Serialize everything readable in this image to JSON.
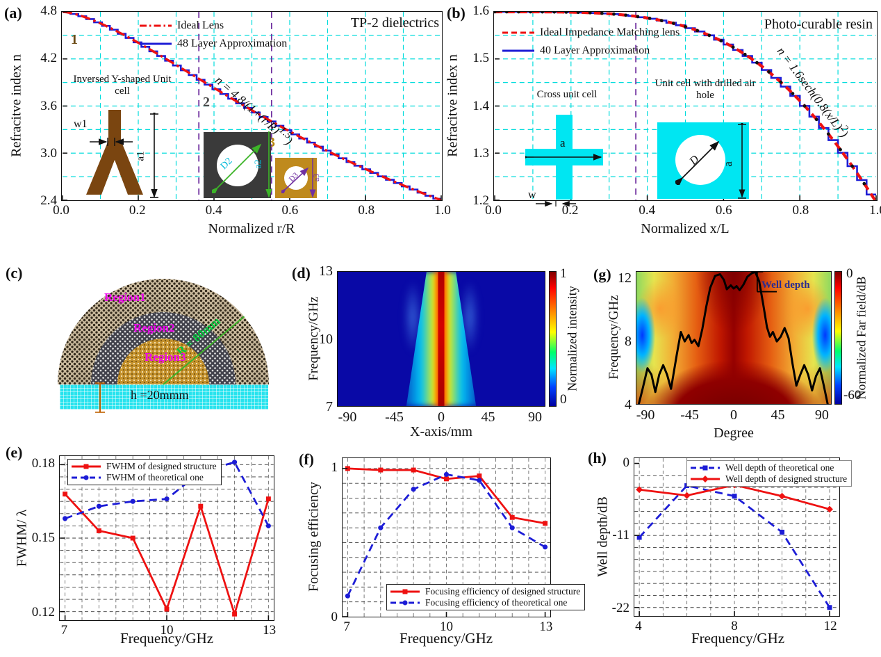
{
  "panels": {
    "a": {
      "letter": "(a)",
      "title": "TP-2 dielectrics",
      "legend": [
        "Ideal Lens",
        "48 Layer Approximation"
      ],
      "formula": {
        "base": "n = 4.8/(1+(r/R)",
        "sup": "1.5",
        "close": ")"
      },
      "xlabel": "Normalized  r/R",
      "ylabel": "Refracitve index n",
      "inset_title": "Inversed Y-shaped Unit cell",
      "labels": {
        "w1": "w1",
        "a1": "a1",
        "D2": "D2",
        "a2": "a2",
        "D3": "D3",
        "a3": "a3"
      },
      "regions": [
        "1",
        "2",
        "3"
      ]
    },
    "b": {
      "letter": "(b)",
      "title": "Photo-curable resin",
      "legend": [
        "Ideal Impedance Matching lens",
        "40 Layer Approximation"
      ],
      "formula": {
        "base": "n = 1.6sech(0.8(x/L)",
        "sup": "2",
        "close": ")"
      },
      "xlabel": "Normalized  x/L",
      "ylabel": "Refracitve index n",
      "inset1_title": "Cross unit cell",
      "inset2_title": "Unit cell with drilled air hole",
      "labels": {
        "a_cross": "a",
        "w": "w",
        "D": "D",
        "a_square": "a"
      }
    },
    "c": {
      "letter": "(c)",
      "regions": [
        "Region1",
        "Region2",
        "Region3"
      ],
      "radius_label": "R = 80mm",
      "height_label": "h =20mmm"
    },
    "d": {
      "letter": "(d)",
      "xlabel": "X-axis/mm",
      "ylabel": "Frequency/GHz",
      "colorbar_label": "Normalized intensity"
    },
    "g": {
      "letter": "(g)",
      "xlabel": "Degree",
      "ylabel": "Frequency/GHz",
      "colorbar_label": "Normalized Far field/dB",
      "annotation": "Well depth"
    },
    "e": {
      "letter": "(e)",
      "xlabel": "Frequency/GHz",
      "ylabel": "FWHM/ λ",
      "legend": [
        "FWHM of designed structure",
        "FWHM of theoretical one"
      ]
    },
    "f": {
      "letter": "(f)",
      "xlabel": "Frequency/GHz",
      "ylabel": "Focusing efficiency",
      "legend": [
        "Focusing efficiency of designed structure",
        "Focusing efficiency of theoretical one"
      ]
    },
    "h": {
      "letter": "(h)",
      "xlabel": "Frequency/GHz",
      "ylabel": "Well depth/dB",
      "legend": [
        "Well depth of theoretical one",
        "Well depth of designed structure"
      ]
    }
  },
  "colors": {
    "red": "#ee1111",
    "blue": "#1c1cd6",
    "grid_cyan": "#00dcdc",
    "purple": "#7030a0",
    "magenta": "#ee00ee",
    "green": "#00b43c",
    "navy": "#2b2b8f",
    "brown": "#7a4510",
    "golden": "#bf8a1d",
    "dark_square": "#3a3a3a",
    "resin_cyan": "#00e6f2",
    "black": "#111111"
  },
  "chart_data": [
    {
      "id": "a",
      "type": "line",
      "title": "TP-2 dielectrics",
      "xlabel": "Normalized r/R",
      "ylabel": "Refracitve index n",
      "xlim": [
        0,
        1
      ],
      "ylim": [
        2.4,
        4.8
      ],
      "x_ticks": {
        "values": [
          0,
          0.2,
          0.4,
          0.6,
          0.8,
          1.0
        ],
        "labels": [
          "0.0",
          "0.2",
          "0.4",
          "0.6",
          "0.8",
          "1.0"
        ]
      },
      "y_ticks": {
        "values": [
          4.8,
          4.2,
          3.6,
          3.0,
          2.4
        ],
        "labels": [
          "4.8",
          "4.2",
          "3.6",
          "3.0",
          "2.4"
        ]
      },
      "grid": {
        "x_step": 0.1,
        "y_step": 0.3,
        "color": "cyan"
      },
      "region_boundaries": [
        0.36,
        0.552
      ],
      "series": [
        {
          "name": "Ideal Lens",
          "color": "#ee1111",
          "style": "dashdot",
          "formula": "n = 4.8/(1+(r/R)^1.5)",
          "params": {
            "n0": 4.8,
            "exp": 1.5
          }
        },
        {
          "name": "48 Layer Approximation",
          "color": "#1c1cd6",
          "style": "staircase",
          "layers": 48
        }
      ]
    },
    {
      "id": "b",
      "type": "line",
      "title": "Photo-curable resin",
      "xlabel": "Normalized x/L",
      "ylabel": "Refracitve index n",
      "xlim": [
        0,
        1
      ],
      "ylim": [
        1.2,
        1.6
      ],
      "x_ticks": {
        "values": [
          0,
          0.2,
          0.4,
          0.6,
          0.8,
          1.0
        ],
        "labels": [
          "0.0",
          "0.2",
          "0.4",
          "0.6",
          "0.8",
          "1.0"
        ]
      },
      "y_ticks": {
        "values": [
          1.6,
          1.5,
          1.4,
          1.3,
          1.2
        ],
        "labels": [
          "1.6",
          "1.5",
          "1.4",
          "1.3",
          "1.2"
        ]
      },
      "grid": {
        "x_step": 0.1,
        "y_step": 0.05,
        "color": "cyan"
      },
      "region_boundaries": [
        0.37
      ],
      "series": [
        {
          "name": "Ideal Impedance Matching lens",
          "color": "#ee1111",
          "style": "dashed",
          "formula": "n = 1.6sech(0.8(x/L)^2)",
          "params": {
            "n0": 1.6,
            "coef": 0.8
          },
          "markers": "black-dots"
        },
        {
          "name": "40 Layer Approximation",
          "color": "#1c1cd6",
          "style": "staircase",
          "layers": 40
        }
      ]
    },
    {
      "id": "d",
      "type": "heatmap",
      "xlabel": "X-axis/mm",
      "ylabel": "Frequency/GHz",
      "xlim": [
        -100,
        100
      ],
      "ylim": [
        7,
        13
      ],
      "x_ticks": {
        "values": [
          -90,
          -45,
          0,
          45,
          90
        ],
        "labels": [
          "-90",
          "-45",
          "0",
          "45",
          "90"
        ]
      },
      "y_ticks": {
        "values": [
          13,
          10,
          7
        ],
        "labels": [
          "13",
          "10",
          "7"
        ]
      },
      "colorbar": {
        "label": "Normalized intensity",
        "ticks": {
          "values": [
            1,
            0
          ],
          "labels": [
            "1",
            "0"
          ]
        }
      },
      "features": "focused beam centered at x=0 across 7-13 GHz, dark-blue background, red core with cyan flanks widening toward low frequency"
    },
    {
      "id": "g",
      "type": "heatmap",
      "xlabel": "Degree",
      "ylabel": "Frequency/GHz",
      "xlim": [
        -100,
        100
      ],
      "ylim": [
        4,
        12.45
      ],
      "x_ticks": {
        "values": [
          -90,
          -45,
          0,
          45,
          90
        ],
        "labels": [
          "-90",
          "-45",
          "0",
          "45",
          "90"
        ]
      },
      "y_ticks": {
        "values": [
          12,
          8,
          4
        ],
        "labels": [
          "12",
          "8",
          "4"
        ]
      },
      "colorbar": {
        "label": "Normalized Far field/dB",
        "ticks": {
          "values": [
            0,
            -60
          ],
          "labels": [
            "0",
            "-60"
          ]
        }
      },
      "annotation": "Well depth",
      "overlay_curve": [
        [
          -97,
          4.0
        ],
        [
          -93,
          5.0
        ],
        [
          -88,
          6.3
        ],
        [
          -84,
          5.9
        ],
        [
          -80,
          4.8
        ],
        [
          -76,
          5.9
        ],
        [
          -72,
          6.5
        ],
        [
          -68,
          5.9
        ],
        [
          -64,
          5.0
        ],
        [
          -58,
          7.2
        ],
        [
          -54,
          8.6
        ],
        [
          -50,
          8.0
        ],
        [
          -46,
          8.4
        ],
        [
          -43,
          7.9
        ],
        [
          -40,
          8.1
        ],
        [
          -36,
          7.7
        ],
        [
          -32,
          8.8
        ],
        [
          -28,
          10.2
        ],
        [
          -24,
          11.4
        ],
        [
          -19,
          12.15
        ],
        [
          -14,
          12.25
        ],
        [
          -10,
          11.9
        ],
        [
          -7,
          11.3
        ],
        [
          -3,
          11.55
        ],
        [
          0,
          11.35
        ],
        [
          3,
          11.5
        ],
        [
          6,
          11.25
        ],
        [
          10,
          11.6
        ],
        [
          14,
          12.1
        ],
        [
          18,
          12.3
        ],
        [
          22,
          12.4
        ],
        [
          26,
          11.8
        ],
        [
          30,
          10.4
        ],
        [
          34,
          8.9
        ],
        [
          37,
          8.3
        ],
        [
          40,
          8.6
        ],
        [
          44,
          8.0
        ],
        [
          48,
          8.3
        ],
        [
          52,
          8.85
        ],
        [
          56,
          8.2
        ],
        [
          60,
          6.6
        ],
        [
          64,
          5.2
        ],
        [
          68,
          5.9
        ],
        [
          72,
          6.5
        ],
        [
          76,
          5.9
        ],
        [
          80,
          4.9
        ],
        [
          84,
          5.8
        ],
        [
          88,
          6.3
        ],
        [
          92,
          5.2
        ],
        [
          96,
          4.0
        ]
      ],
      "features": "dark-red main beam around 0 deg, yellow-green edges, blue streaks near ±90 deg at ~8 GHz, black far-field curve overlay"
    },
    {
      "id": "e",
      "type": "line",
      "xlabel": "Frequency/GHz",
      "ylabel": "FWHM/ λ",
      "xlim": [
        6.85,
        13.15
      ],
      "ylim": [
        0.1165,
        0.1835
      ],
      "x": [
        7,
        8,
        9,
        10,
        11,
        12,
        13
      ],
      "x_ticks": {
        "values": [
          7,
          10,
          13
        ],
        "labels": [
          "7",
          "10",
          "13"
        ]
      },
      "y_ticks": {
        "values": [
          0.18,
          0.15,
          0.12
        ],
        "labels": [
          "0.18",
          "0.15",
          "0.12"
        ]
      },
      "grid": {
        "x_step": 0.5,
        "y_step": 0.005,
        "color": "gray"
      },
      "series": [
        {
          "name": "FWHM of designed structure",
          "color": "#ee1111",
          "style": "solid",
          "marker": "square",
          "values": [
            0.168,
            0.153,
            0.15,
            0.121,
            0.163,
            0.119,
            0.166
          ]
        },
        {
          "name": "FWHM of theoretical one",
          "color": "#1c1cd6",
          "style": "dashed",
          "marker": "circle",
          "values": [
            0.158,
            0.163,
            0.165,
            0.166,
            0.177,
            0.181,
            0.155
          ]
        }
      ]
    },
    {
      "id": "f",
      "type": "line",
      "xlabel": "Frequency/GHz",
      "ylabel": "Focusing efficiency",
      "xlim": [
        6.85,
        13.15
      ],
      "ylim": [
        0,
        1.07
      ],
      "x": [
        7,
        8,
        9,
        10,
        11,
        12,
        13
      ],
      "x_ticks": {
        "values": [
          7,
          10,
          13
        ],
        "labels": [
          "7",
          "10",
          "13"
        ]
      },
      "y_ticks": {
        "values": [
          1,
          0
        ],
        "labels": [
          "1",
          "0"
        ]
      },
      "grid": {
        "x_step": 0.5,
        "y_step": 0.1,
        "color": "gray"
      },
      "series": [
        {
          "name": "Focusing efficiency of designed structure",
          "color": "#ee1111",
          "style": "solid",
          "marker": "square",
          "values": [
            1.0,
            0.99,
            0.99,
            0.93,
            0.95,
            0.67,
            0.63
          ]
        },
        {
          "name": "Focusing efficiency of theoretical one",
          "color": "#1c1cd6",
          "style": "dashed",
          "marker": "circle",
          "values": [
            0.14,
            0.6,
            0.86,
            0.96,
            0.92,
            0.6,
            0.47
          ]
        }
      ]
    },
    {
      "id": "h",
      "type": "line",
      "xlabel": "Frequency/GHz",
      "ylabel": "Well depth/dB",
      "xlim": [
        3.8,
        12.4
      ],
      "ylim": [
        -23.3,
        0.8
      ],
      "x": [
        4,
        6,
        8,
        10,
        12
      ],
      "x_ticks": {
        "values": [
          4,
          8,
          12
        ],
        "labels": [
          "4",
          "8",
          "12"
        ]
      },
      "y_ticks": {
        "values": [
          0,
          -11,
          -22
        ],
        "labels": [
          "0",
          "-11",
          "-22"
        ]
      },
      "grid": {
        "x_step": 1,
        "y_step": 1.8333,
        "color": "gray"
      },
      "series": [
        {
          "name": "Well depth of theoretical one",
          "color": "#1c1cd6",
          "style": "dashed",
          "marker": "square",
          "values": [
            -11.3,
            -3.4,
            -5.0,
            -10.5,
            -22.0
          ]
        },
        {
          "name": "Well depth of designed structure",
          "color": "#ee1111",
          "style": "solid",
          "marker": "diamond",
          "values": [
            -4.0,
            -4.9,
            -3.3,
            -5.0,
            -7.0
          ]
        }
      ]
    }
  ]
}
